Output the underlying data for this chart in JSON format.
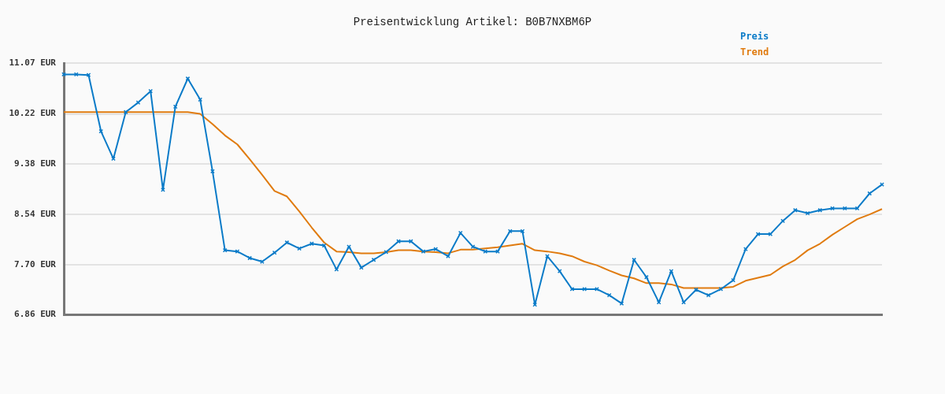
{
  "chart_data": {
    "type": "line",
    "title": "Preisentwicklung Artikel: B0B7NXBM6P",
    "categories": [
      null,
      null,
      null,
      null,
      null,
      null,
      null,
      null,
      null,
      null,
      null,
      null,
      null,
      null,
      null,
      null,
      null,
      null,
      null,
      null,
      null,
      null,
      null,
      null,
      null,
      null,
      null,
      null,
      null,
      null,
      null,
      null,
      null,
      null,
      null,
      null,
      null,
      null,
      null,
      null,
      null,
      null,
      null,
      null,
      null,
      null,
      null,
      null,
      null,
      null,
      null,
      null,
      null,
      null,
      null,
      null,
      null,
      null,
      null,
      null,
      null,
      null,
      null,
      null,
      null,
      null,
      null
    ],
    "series": [
      {
        "name": "Preis",
        "color": "#0a7bc8",
        "marker": "cross",
        "values": [
          10.88,
          10.88,
          10.87,
          9.93,
          9.47,
          10.25,
          10.41,
          10.6,
          8.95,
          10.34,
          10.81,
          10.46,
          9.26,
          7.94,
          7.92,
          7.81,
          7.75,
          7.9,
          8.07,
          7.97,
          8.05,
          8.02,
          7.62,
          8.0,
          7.65,
          7.78,
          7.91,
          8.09,
          8.09,
          7.92,
          7.96,
          7.84,
          8.23,
          8.0,
          7.92,
          7.92,
          8.26,
          8.26,
          7.03,
          7.84,
          7.59,
          7.29,
          7.29,
          7.29,
          7.19,
          7.05,
          7.78,
          7.49,
          7.07,
          7.59,
          7.07,
          7.28,
          7.19,
          7.29,
          7.44,
          7.96,
          8.21,
          8.21,
          8.43,
          8.61,
          8.56,
          8.61,
          8.64,
          8.64,
          8.64,
          8.89,
          9.04
        ]
      },
      {
        "name": "Trend",
        "color": "#e07b0f",
        "values": [
          10.25,
          10.25,
          10.25,
          10.25,
          10.25,
          10.25,
          10.25,
          10.25,
          10.25,
          10.25,
          10.25,
          10.22,
          10.05,
          9.86,
          9.71,
          9.46,
          9.2,
          8.93,
          8.84,
          8.59,
          8.32,
          8.07,
          7.92,
          7.91,
          7.89,
          7.89,
          7.91,
          7.94,
          7.94,
          7.92,
          7.91,
          7.89,
          7.95,
          7.95,
          7.97,
          7.99,
          8.02,
          8.05,
          7.94,
          7.92,
          7.89,
          7.84,
          7.75,
          7.69,
          7.6,
          7.52,
          7.47,
          7.39,
          7.39,
          7.37,
          7.31,
          7.31,
          7.31,
          7.31,
          7.33,
          7.43,
          7.48,
          7.53,
          7.67,
          7.78,
          7.94,
          8.05,
          8.2,
          8.33,
          8.46,
          8.54,
          8.63
        ]
      }
    ],
    "ylim": [
      6.86,
      11.07
    ],
    "yticks": [
      {
        "value": 6.86,
        "label": "6.86 EUR"
      },
      {
        "value": 7.7,
        "label": "7.70 EUR"
      },
      {
        "value": 8.54,
        "label": "8.54 EUR"
      },
      {
        "value": 9.38,
        "label": "9.38 EUR"
      },
      {
        "value": 10.22,
        "label": "10.22 EUR"
      },
      {
        "value": 11.07,
        "label": "11.07 EUR"
      }
    ],
    "grid": "y",
    "legend": "top right"
  }
}
